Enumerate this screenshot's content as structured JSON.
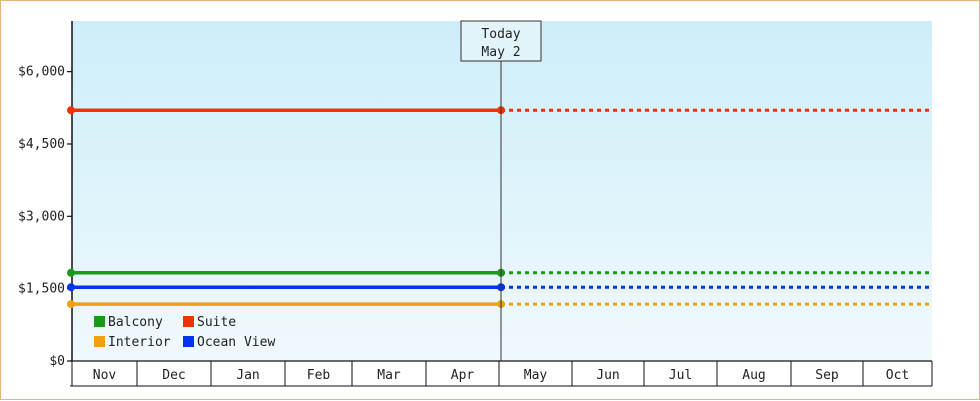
{
  "chart_data": {
    "type": "line",
    "today_marker": {
      "line1": "Today",
      "line2": "May 2"
    },
    "categories": [
      "Nov",
      "Dec",
      "Jan",
      "Feb",
      "Mar",
      "Apr",
      "May",
      "Jun",
      "Jul",
      "Aug",
      "Sep",
      "Oct"
    ],
    "y_ticks": [
      {
        "value": 0,
        "label": "$0"
      },
      {
        "value": 1500,
        "label": "$1,500"
      },
      {
        "value": 3000,
        "label": "$3,000"
      },
      {
        "value": 4500,
        "label": "$4,500"
      },
      {
        "value": 6000,
        "label": "$6,000"
      }
    ],
    "ylim": [
      0,
      7050
    ],
    "series": [
      {
        "name": "Balcony",
        "color": "#1a9a1a",
        "value": 1830
      },
      {
        "name": "Suite",
        "color": "#ee3300",
        "value": 5200
      },
      {
        "name": "Interior",
        "color": "#f0a010",
        "value": 1180
      },
      {
        "name": "Ocean View",
        "color": "#0033ee",
        "value": 1530
      }
    ],
    "legend_position": "bottom-left",
    "solid_until": "Today (May 2)",
    "dotted_after": "Today (May 2)"
  }
}
